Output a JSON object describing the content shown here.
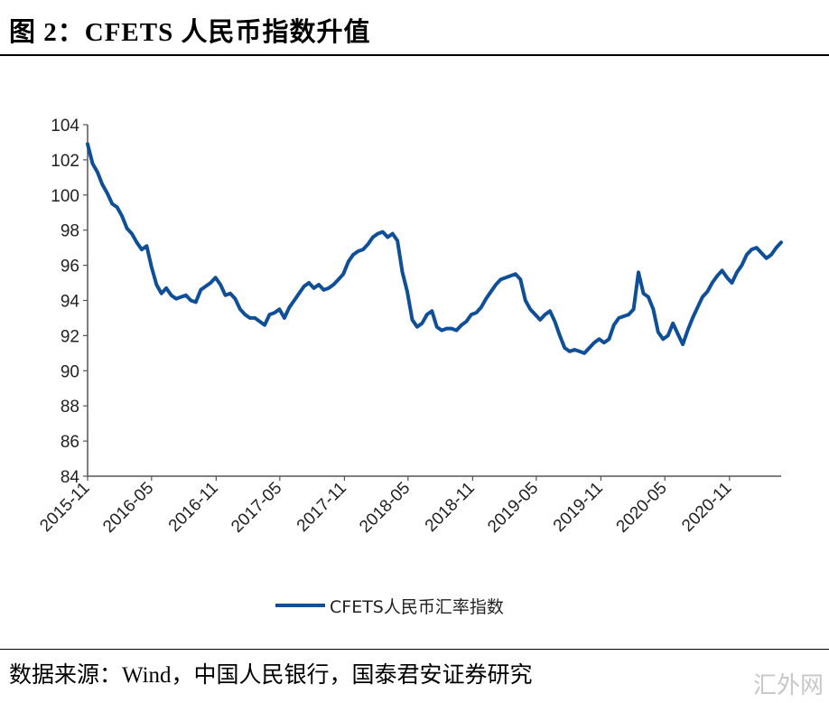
{
  "header": {
    "title": "图 2：CFETS 人民币指数升值"
  },
  "footer": {
    "source": "数据来源：Wind，中国人民银行，国泰君安证券研究",
    "watermark": "汇外网"
  },
  "colors": {
    "series": "#0e4f97",
    "axis": "#555555"
  },
  "chart_data": {
    "type": "line",
    "title": "",
    "xlabel": "",
    "ylabel": "",
    "ylim": [
      84,
      104
    ],
    "yticks": [
      "104",
      "102",
      "100",
      "98",
      "96",
      "94",
      "92",
      "90",
      "88",
      "86",
      "84"
    ],
    "xticks": [
      "2015-11",
      "2016-05",
      "2016-11",
      "2017-05",
      "2017-11",
      "2018-05",
      "2018-11",
      "2019-05",
      "2019-11",
      "2020-05",
      "2020-11"
    ],
    "x_range": [
      "2015-11-20",
      "2021-04-16"
    ],
    "grid": false,
    "legend": "bottom",
    "series": [
      {
        "name": "CFETS人民币汇率指数",
        "x": [
          "2015-11-20",
          "2015-12-04",
          "2015-12-18",
          "2016-01-01",
          "2016-01-15",
          "2016-01-29",
          "2016-02-12",
          "2016-02-26",
          "2016-03-11",
          "2016-03-25",
          "2016-04-08",
          "2016-04-22",
          "2016-05-06",
          "2016-05-20",
          "2016-06-03",
          "2016-06-17",
          "2016-07-01",
          "2016-07-15",
          "2016-07-29",
          "2016-08-12",
          "2016-08-26",
          "2016-09-09",
          "2016-09-23",
          "2016-10-07",
          "2016-10-21",
          "2016-11-04",
          "2016-11-18",
          "2016-12-02",
          "2016-12-16",
          "2016-12-30",
          "2017-01-13",
          "2017-01-27",
          "2017-02-10",
          "2017-02-24",
          "2017-03-10",
          "2017-03-24",
          "2017-04-07",
          "2017-04-21",
          "2017-05-05",
          "2017-05-19",
          "2017-06-02",
          "2017-06-16",
          "2017-06-30",
          "2017-07-14",
          "2017-07-28",
          "2017-08-11",
          "2017-08-25",
          "2017-09-08",
          "2017-09-22",
          "2017-10-06",
          "2017-10-20",
          "2017-11-03",
          "2017-11-17",
          "2017-12-01",
          "2017-12-15",
          "2017-12-29",
          "2018-01-12",
          "2018-01-26",
          "2018-02-09",
          "2018-02-23",
          "2018-03-09",
          "2018-03-23",
          "2018-04-06",
          "2018-04-20",
          "2018-05-04",
          "2018-05-18",
          "2018-06-01",
          "2018-06-15",
          "2018-06-29",
          "2018-07-13",
          "2018-07-27",
          "2018-08-10",
          "2018-08-24",
          "2018-09-07",
          "2018-09-21",
          "2018-10-05",
          "2018-10-19",
          "2018-11-02",
          "2018-11-16",
          "2018-11-30",
          "2018-12-14",
          "2018-12-28",
          "2019-01-11",
          "2019-01-25",
          "2019-02-08",
          "2019-02-22",
          "2019-03-08",
          "2019-03-22",
          "2019-04-05",
          "2019-04-19",
          "2019-05-03",
          "2019-05-17",
          "2019-05-31",
          "2019-06-14",
          "2019-06-28",
          "2019-07-12",
          "2019-07-26",
          "2019-08-09",
          "2019-08-23",
          "2019-09-06",
          "2019-09-20",
          "2019-10-04",
          "2019-10-18",
          "2019-11-01",
          "2019-11-15",
          "2019-11-29",
          "2019-12-13",
          "2019-12-27",
          "2020-01-10",
          "2020-01-24",
          "2020-02-07",
          "2020-02-21",
          "2020-03-06",
          "2020-03-20",
          "2020-04-03",
          "2020-04-17",
          "2020-05-01",
          "2020-05-15",
          "2020-05-29",
          "2020-06-12",
          "2020-06-26",
          "2020-07-10",
          "2020-07-24",
          "2020-08-07",
          "2020-08-21",
          "2020-09-04",
          "2020-09-18",
          "2020-10-02",
          "2020-10-16",
          "2020-10-30",
          "2020-11-13",
          "2020-11-27",
          "2020-12-11",
          "2020-12-25",
          "2021-01-08",
          "2021-01-22",
          "2021-02-05",
          "2021-02-19",
          "2021-03-05",
          "2021-03-19",
          "2021-04-02",
          "2021-04-16"
        ],
        "values": [
          102.9,
          101.8,
          101.3,
          100.6,
          100.1,
          99.5,
          99.3,
          98.8,
          98.1,
          97.8,
          97.3,
          96.9,
          97.1,
          95.9,
          94.9,
          94.4,
          94.7,
          94.3,
          94.1,
          94.2,
          94.3,
          94.0,
          93.9,
          94.6,
          94.8,
          95.0,
          95.3,
          94.9,
          94.3,
          94.4,
          94.1,
          93.5,
          93.2,
          93.0,
          93.0,
          92.8,
          92.6,
          93.2,
          93.3,
          93.5,
          93.0,
          93.6,
          94.0,
          94.4,
          94.8,
          95.0,
          94.7,
          94.9,
          94.6,
          94.7,
          94.9,
          95.2,
          95.5,
          96.2,
          96.6,
          96.8,
          96.9,
          97.2,
          97.6,
          97.8,
          97.9,
          97.6,
          97.8,
          97.4,
          95.6,
          94.5,
          92.9,
          92.5,
          92.7,
          93.2,
          93.4,
          92.5,
          92.3,
          92.4,
          92.4,
          92.3,
          92.6,
          92.8,
          93.2,
          93.3,
          93.6,
          94.1,
          94.5,
          94.9,
          95.2,
          95.3,
          95.4,
          95.5,
          95.2,
          94.0,
          93.5,
          93.2,
          92.9,
          93.2,
          93.4,
          92.8,
          92.0,
          91.3,
          91.1,
          91.2,
          91.1,
          91.0,
          91.3,
          91.6,
          91.8,
          91.6,
          91.8,
          92.6,
          93.0,
          93.1,
          93.2,
          93.5,
          95.6,
          94.4,
          94.2,
          93.5,
          92.2,
          91.8,
          92.0,
          92.7,
          92.1,
          91.5,
          92.3,
          93.0,
          93.6,
          94.2,
          94.5,
          95.0,
          95.4,
          95.7,
          95.3,
          95.0,
          95.6,
          96.0,
          96.6,
          96.9,
          97.0,
          96.7,
          96.4,
          96.6,
          97.0,
          97.3
        ]
      }
    ]
  }
}
